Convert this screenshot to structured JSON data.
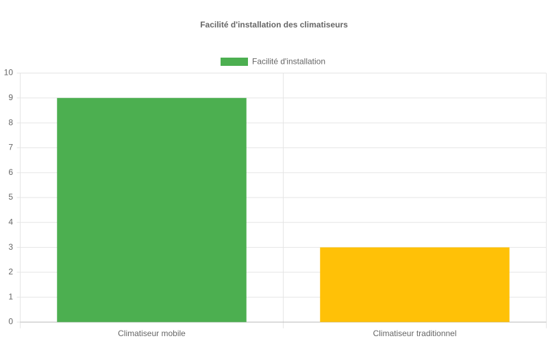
{
  "chart_data": {
    "type": "bar",
    "title": "Facilité d'installation des climatiseurs",
    "categories": [
      "Climatiseur mobile",
      "Climatiseur traditionnel"
    ],
    "series": [
      {
        "name": "Facilité d'installation",
        "colors": [
          "#4caf50",
          "#ffc107"
        ],
        "values": [
          9,
          3
        ]
      }
    ],
    "ylim": [
      0,
      10
    ],
    "yticks": [
      0,
      1,
      2,
      3,
      4,
      5,
      6,
      7,
      8,
      9,
      10
    ],
    "grid": true,
    "legend": "top"
  }
}
